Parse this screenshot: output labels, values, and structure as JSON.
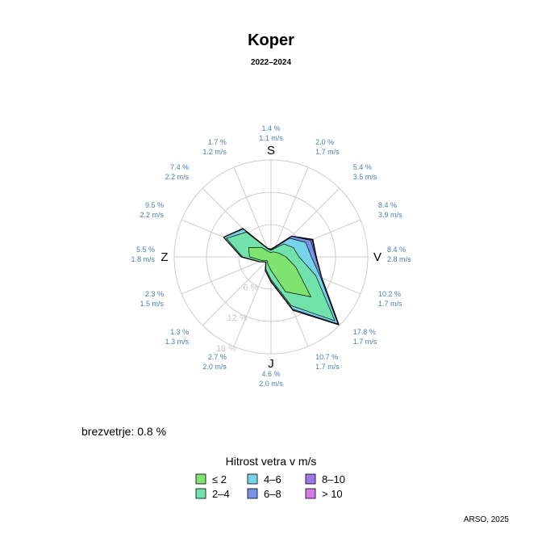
{
  "chart_data": {
    "type": "wind-rose",
    "title": "Koper",
    "subtitle": "2022–2024",
    "directions": [
      {
        "compass": "S",
        "label": "S",
        "pct_label": "1.4 %",
        "speed_label": "1.1 m/s"
      },
      {
        "compass": "SSV",
        "label": "",
        "pct_label": "2.0 %",
        "speed_label": "1.7 m/s"
      },
      {
        "compass": "SV",
        "label": "",
        "pct_label": "5.4 %",
        "speed_label": "3.5 m/s"
      },
      {
        "compass": "VSV",
        "label": "",
        "pct_label": "8.4 %",
        "speed_label": "3.9 m/s"
      },
      {
        "compass": "V",
        "label": "V",
        "pct_label": "8.4 %",
        "speed_label": "2.8 m/s"
      },
      {
        "compass": "VJV",
        "label": "",
        "pct_label": "10.2 %",
        "speed_label": "1.7 m/s"
      },
      {
        "compass": "JV",
        "label": "",
        "pct_label": "17.8 %",
        "speed_label": "1.7 m/s"
      },
      {
        "compass": "JJV",
        "label": "",
        "pct_label": "10.7 %",
        "speed_label": "1.7 m/s"
      },
      {
        "compass": "J",
        "label": "J",
        "pct_label": "4.6 %",
        "speed_label": "2.0 m/s"
      },
      {
        "compass": "JJZ",
        "label": "",
        "pct_label": "2.7 %",
        "speed_label": "2.0 m/s"
      },
      {
        "compass": "JZ",
        "label": "",
        "pct_label": "1.3 %",
        "speed_label": "1.3 m/s"
      },
      {
        "compass": "ZJZ",
        "label": "",
        "pct_label": "2.3 %",
        "speed_label": "1.5 m/s"
      },
      {
        "compass": "Z",
        "label": "Z",
        "pct_label": "5.5 %",
        "speed_label": "1.8 m/s"
      },
      {
        "compass": "ZSZ",
        "label": "",
        "pct_label": "9.5 %",
        "speed_label": "2.2 m/s"
      },
      {
        "compass": "SZ",
        "label": "",
        "pct_label": "7.4 %",
        "speed_label": "2.2 m/s"
      },
      {
        "compass": "SSZ",
        "label": "",
        "pct_label": "1.7 %",
        "speed_label": "1.2 m/s"
      }
    ],
    "radial_axis": {
      "ticks": [
        6,
        12,
        18
      ],
      "tick_labels": [
        "6 %",
        "12 %",
        "18 %"
      ],
      "max": 18
    },
    "speed_classes": [
      {
        "name": "≤ 2",
        "color": "#7fe36f"
      },
      {
        "name": "2–4",
        "color": "#72e2ac"
      },
      {
        "name": "4–6",
        "color": "#77d3ea"
      },
      {
        "name": "6–8",
        "color": "#7a93e9"
      },
      {
        "name": "8–10",
        "color": "#9c77e6"
      },
      {
        "name": "> 10",
        "color": "#d17be8"
      }
    ],
    "cumulative_pct": [
      [
        0.8,
        1.2,
        1.3,
        1.4,
        1.4,
        1.4
      ],
      [
        1.0,
        1.7,
        1.9,
        2.0,
        2.0,
        2.0
      ],
      [
        1.2,
        3.4,
        4.9,
        5.4,
        5.4,
        5.4
      ],
      [
        1.7,
        4.5,
        7.0,
        8.0,
        8.3,
        8.4
      ],
      [
        2.8,
        5.2,
        7.5,
        8.3,
        8.4,
        8.4
      ],
      [
        5.0,
        9.0,
        10.0,
        10.2,
        10.2,
        10.2
      ],
      [
        10.5,
        16.8,
        17.6,
        17.8,
        17.8,
        17.8
      ],
      [
        7.0,
        9.8,
        10.5,
        10.7,
        10.7,
        10.7
      ],
      [
        2.5,
        4.2,
        4.5,
        4.6,
        4.6,
        4.6
      ],
      [
        1.5,
        2.5,
        2.7,
        2.7,
        2.7,
        2.7
      ],
      [
        1.0,
        1.3,
        1.3,
        1.3,
        1.3,
        1.3
      ],
      [
        1.8,
        2.3,
        2.3,
        2.3,
        2.3,
        2.3
      ],
      [
        4.0,
        5.3,
        5.5,
        5.5,
        5.5,
        5.5
      ],
      [
        4.5,
        9.0,
        9.5,
        9.5,
        9.5,
        9.5
      ],
      [
        2.5,
        6.5,
        7.3,
        7.4,
        7.4,
        7.4
      ],
      [
        1.0,
        1.6,
        1.7,
        1.7,
        1.7,
        1.7
      ]
    ],
    "calm_label": "brezvetrje: 0.8 %",
    "legend_title": "Hitrost vetra v m/s",
    "source": "ARSO, 2025"
  }
}
